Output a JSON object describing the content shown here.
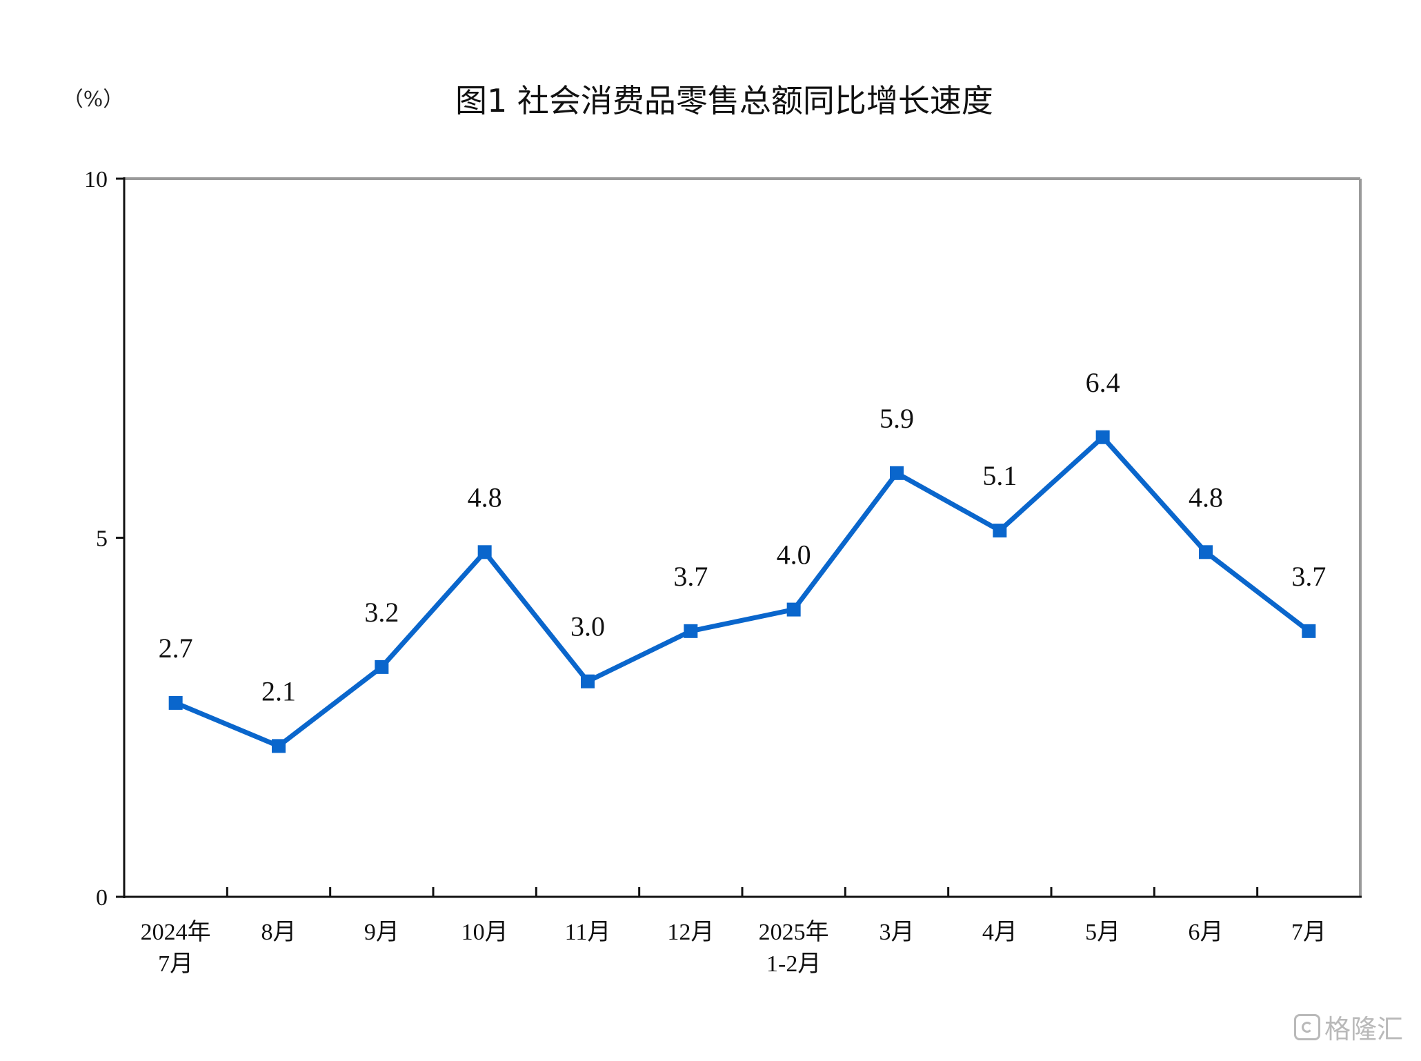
{
  "chart_data": {
    "type": "line",
    "title": "图1  社会消费品零售总额同比增长速度",
    "unit_label": "（%）",
    "xlabel": "",
    "ylabel": "",
    "ylim": [
      0,
      10
    ],
    "yticks": [
      "0",
      "5",
      "10"
    ],
    "grid": false,
    "legend": "none",
    "categories": [
      [
        "2024年",
        "7月"
      ],
      [
        "8月"
      ],
      [
        "9月"
      ],
      [
        "10月"
      ],
      [
        "11月"
      ],
      [
        "12月"
      ],
      [
        "2025年",
        "1-2月"
      ],
      [
        "3月"
      ],
      [
        "4月"
      ],
      [
        "5月"
      ],
      [
        "6月"
      ],
      [
        "7月"
      ]
    ],
    "series": [
      {
        "values": [
          2.7,
          2.1,
          3.2,
          4.8,
          3.0,
          3.7,
          4.0,
          5.9,
          5.1,
          6.4,
          4.8,
          3.7
        ],
        "labels": [
          "2.7",
          "2.1",
          "3.2",
          "4.8",
          "3.0",
          "3.7",
          "4.0",
          "5.9",
          "5.1",
          "6.4",
          "4.8",
          "3.7"
        ],
        "color": "#0a66cc"
      }
    ]
  },
  "watermark": {
    "text": "格隆汇",
    "icon": "gelonghui-logo-icon"
  }
}
